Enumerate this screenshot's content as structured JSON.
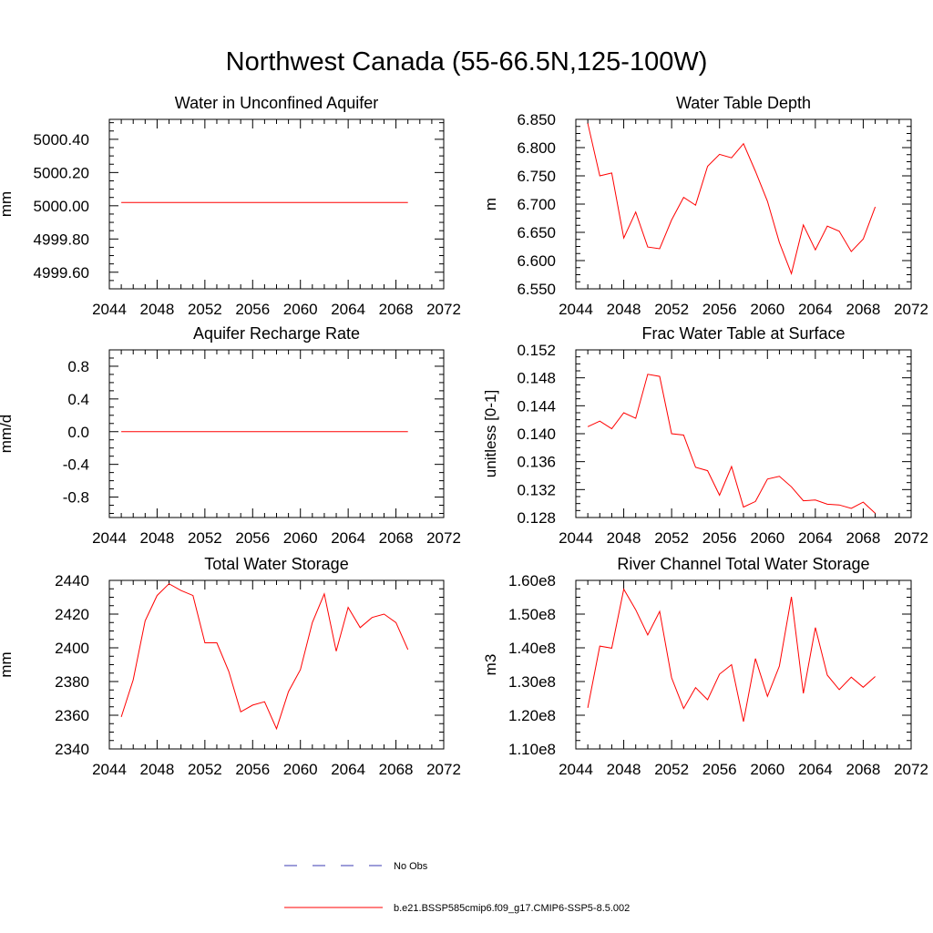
{
  "title": "Northwest Canada (55-66.5N,125-100W)",
  "colors": {
    "model": "#ff0000",
    "obs": "#3b3bb3",
    "axis": "#000000"
  },
  "legend": {
    "entries": [
      {
        "label": "No Obs",
        "style": "dashed",
        "color": "#3b3bb3"
      },
      {
        "label": "b.e21.BSSP585cmip6.f09_g17.CMIP6-SSP5-8.5.002",
        "style": "solid",
        "color": "#ff0000"
      }
    ]
  },
  "chart_data": [
    {
      "type": "line",
      "title": "Water in Unconfined Aquifer",
      "ylabel": "mm",
      "xlim": [
        2044,
        2072
      ],
      "ylim": [
        4999.5,
        5000.52
      ],
      "x_ticks": [
        "2044",
        "2048",
        "2052",
        "2056",
        "2060",
        "2064",
        "2068",
        "2072"
      ],
      "y_ticks": [
        {
          "v": 4999.6,
          "label": "4999.60"
        },
        {
          "v": 4999.8,
          "label": "4999.80"
        },
        {
          "v": 5000.0,
          "label": "5000.00"
        },
        {
          "v": 5000.2,
          "label": "5000.20"
        },
        {
          "v": 5000.4,
          "label": "5000.40"
        }
      ],
      "series": [
        {
          "x": [
            2045,
            2046,
            2047,
            2048,
            2049,
            2050,
            2051,
            2052,
            2053,
            2054,
            2055,
            2056,
            2057,
            2058,
            2059,
            2060,
            2061,
            2062,
            2063,
            2064,
            2065,
            2066,
            2067,
            2068,
            2069
          ],
          "y": [
            5000.02,
            5000.02,
            5000.02,
            5000.02,
            5000.02,
            5000.02,
            5000.02,
            5000.02,
            5000.02,
            5000.02,
            5000.02,
            5000.02,
            5000.02,
            5000.02,
            5000.02,
            5000.02,
            5000.02,
            5000.02,
            5000.02,
            5000.02,
            5000.02,
            5000.02,
            5000.02,
            5000.02,
            5000.02
          ]
        }
      ]
    },
    {
      "type": "line",
      "title": "Water Table Depth",
      "ylabel": "m",
      "xlim": [
        2044,
        2072
      ],
      "ylim": [
        6.55,
        6.85
      ],
      "x_ticks": [
        "2044",
        "2048",
        "2052",
        "2056",
        "2060",
        "2064",
        "2068",
        "2072"
      ],
      "y_ticks": [
        {
          "v": 6.55,
          "label": "6.550"
        },
        {
          "v": 6.6,
          "label": "6.600"
        },
        {
          "v": 6.65,
          "label": "6.650"
        },
        {
          "v": 6.7,
          "label": "6.700"
        },
        {
          "v": 6.75,
          "label": "6.750"
        },
        {
          "v": 6.8,
          "label": "6.800"
        },
        {
          "v": 6.85,
          "label": "6.850"
        }
      ],
      "series": [
        {
          "x": [
            2045,
            2046,
            2047,
            2048,
            2049,
            2050,
            2051,
            2052,
            2053,
            2054,
            2055,
            2056,
            2057,
            2058,
            2059,
            2060,
            2061,
            2062,
            2063,
            2064,
            2065,
            2066,
            2067,
            2068,
            2069
          ],
          "y": [
            6.843,
            6.75,
            6.755,
            6.64,
            6.686,
            6.624,
            6.621,
            6.672,
            6.712,
            6.698,
            6.767,
            6.788,
            6.782,
            6.807,
            6.758,
            6.705,
            6.632,
            6.577,
            6.663,
            6.619,
            6.661,
            6.652,
            6.616,
            6.638,
            6.695
          ]
        }
      ]
    },
    {
      "type": "line",
      "title": "Aquifer Recharge Rate",
      "ylabel": "mm/d",
      "xlim": [
        2044,
        2072
      ],
      "ylim": [
        -1.05,
        1.0
      ],
      "x_ticks": [
        "2044",
        "2048",
        "2052",
        "2056",
        "2060",
        "2064",
        "2068",
        "2072"
      ],
      "y_ticks": [
        {
          "v": -0.8,
          "label": "-0.8"
        },
        {
          "v": -0.4,
          "label": "-0.4"
        },
        {
          "v": 0.0,
          "label": "0.0"
        },
        {
          "v": 0.4,
          "label": "0.4"
        },
        {
          "v": 0.8,
          "label": "0.8"
        }
      ],
      "series": [
        {
          "x": [
            2045,
            2046,
            2047,
            2048,
            2049,
            2050,
            2051,
            2052,
            2053,
            2054,
            2055,
            2056,
            2057,
            2058,
            2059,
            2060,
            2061,
            2062,
            2063,
            2064,
            2065,
            2066,
            2067,
            2068,
            2069
          ],
          "y": [
            0,
            0,
            0,
            0,
            0,
            0,
            0,
            0,
            0,
            0,
            0,
            0,
            0,
            0,
            0,
            0,
            0,
            0,
            0,
            0,
            0,
            0,
            0,
            0,
            0
          ]
        }
      ]
    },
    {
      "type": "line",
      "title": "Frac Water Table at Surface",
      "ylabel": "unitless [0-1]",
      "xlim": [
        2044,
        2072
      ],
      "ylim": [
        0.128,
        0.152
      ],
      "x_ticks": [
        "2044",
        "2048",
        "2052",
        "2056",
        "2060",
        "2064",
        "2068",
        "2072"
      ],
      "y_ticks": [
        {
          "v": 0.128,
          "label": "0.128"
        },
        {
          "v": 0.132,
          "label": "0.132"
        },
        {
          "v": 0.136,
          "label": "0.136"
        },
        {
          "v": 0.14,
          "label": "0.140"
        },
        {
          "v": 0.144,
          "label": "0.144"
        },
        {
          "v": 0.148,
          "label": "0.148"
        },
        {
          "v": 0.152,
          "label": "0.152"
        }
      ],
      "series": [
        {
          "x": [
            2045,
            2046,
            2047,
            2048,
            2049,
            2050,
            2051,
            2052,
            2053,
            2054,
            2055,
            2056,
            2057,
            2058,
            2059,
            2060,
            2061,
            2062,
            2063,
            2064,
            2065,
            2066,
            2067,
            2068,
            2069
          ],
          "y": [
            0.141,
            0.1418,
            0.1407,
            0.143,
            0.1422,
            0.1485,
            0.1482,
            0.14,
            0.1398,
            0.1352,
            0.1347,
            0.1312,
            0.1353,
            0.1295,
            0.1303,
            0.1335,
            0.1339,
            0.1324,
            0.1304,
            0.1305,
            0.1299,
            0.1298,
            0.1293,
            0.1302,
            0.1286
          ]
        }
      ]
    },
    {
      "type": "line",
      "title": "Total Water Storage",
      "ylabel": "mm",
      "xlim": [
        2044,
        2072
      ],
      "ylim": [
        2340,
        2440
      ],
      "x_ticks": [
        "2044",
        "2048",
        "2052",
        "2056",
        "2060",
        "2064",
        "2068",
        "2072"
      ],
      "y_ticks": [
        {
          "v": 2340,
          "label": "2340"
        },
        {
          "v": 2360,
          "label": "2360"
        },
        {
          "v": 2380,
          "label": "2380"
        },
        {
          "v": 2400,
          "label": "2400"
        },
        {
          "v": 2420,
          "label": "2420"
        },
        {
          "v": 2440,
          "label": "2440"
        }
      ],
      "series": [
        {
          "x": [
            2045,
            2046,
            2047,
            2048,
            2049,
            2050,
            2051,
            2052,
            2053,
            2054,
            2055,
            2056,
            2057,
            2058,
            2059,
            2060,
            2061,
            2062,
            2063,
            2064,
            2065,
            2066,
            2067,
            2068,
            2069
          ],
          "y": [
            2359,
            2381,
            2416,
            2431,
            2438,
            2434,
            2431,
            2403,
            2403,
            2386,
            2362,
            2366,
            2368,
            2352,
            2374,
            2387,
            2415,
            2432,
            2398,
            2424,
            2412,
            2418,
            2420,
            2415,
            2399
          ]
        }
      ]
    },
    {
      "type": "line",
      "title": "River Channel Total Water Storage",
      "ylabel": "m3",
      "xlim": [
        2044,
        2072
      ],
      "ylim": [
        110000000,
        160000000
      ],
      "x_ticks": [
        "2044",
        "2048",
        "2052",
        "2056",
        "2060",
        "2064",
        "2068",
        "2072"
      ],
      "y_ticks": [
        {
          "v": 110000000,
          "label": "1.10e8"
        },
        {
          "v": 120000000,
          "label": "1.20e8"
        },
        {
          "v": 130000000,
          "label": "1.30e8"
        },
        {
          "v": 140000000,
          "label": "1.40e8"
        },
        {
          "v": 150000000,
          "label": "1.50e8"
        },
        {
          "v": 160000000,
          "label": "1.60e8"
        }
      ],
      "series": [
        {
          "x": [
            2045,
            2046,
            2047,
            2048,
            2049,
            2050,
            2051,
            2052,
            2053,
            2054,
            2055,
            2056,
            2057,
            2058,
            2059,
            2060,
            2061,
            2062,
            2063,
            2064,
            2065,
            2066,
            2067,
            2068,
            2069
          ],
          "y": [
            122200000,
            140500000,
            139900000,
            157400000,
            151300000,
            143800000,
            150800000,
            131100000,
            122000000,
            128200000,
            124600000,
            132200000,
            135000000,
            118100000,
            136800000,
            125600000,
            134600000,
            155100000,
            126500000,
            146000000,
            131900000,
            127600000,
            131300000,
            128300000,
            131500000
          ]
        }
      ]
    }
  ]
}
